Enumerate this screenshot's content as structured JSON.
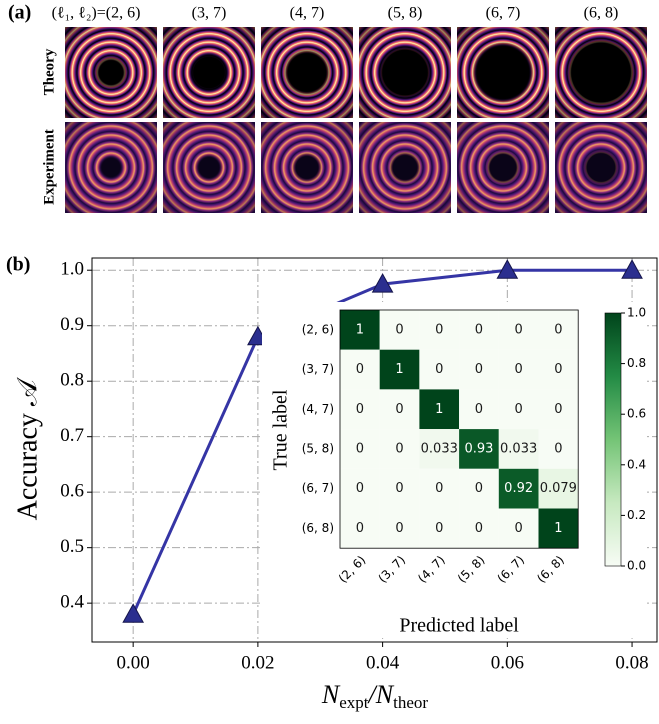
{
  "figure_a": {
    "label": "(a)",
    "columns": [
      "(ℓ₁, ℓ₂)=(2, 6)",
      "(3, 7)",
      "(4, 7)",
      "(5, 8)",
      "(6, 7)",
      "(6, 8)"
    ],
    "rows": [
      "Theory",
      "Experiment"
    ]
  },
  "chart_data": [
    {
      "type": "line",
      "label": "(b)",
      "xlabel": [
        "N",
        "expt",
        "/N",
        "theor"
      ],
      "ylabel": "Accuracy 𝒜",
      "x": [
        0,
        0.02,
        0.04,
        0.06,
        0.08
      ],
      "values": [
        0.38,
        0.88,
        0.975,
        1.0,
        1.0
      ],
      "color": "#3535a5",
      "marker_color": "#2b2f8f",
      "xlim": [
        -0.0066,
        0.084
      ],
      "ylim": [
        0.33,
        1.022
      ],
      "xticks": [
        {
          "value": 0,
          "label": "0.00"
        },
        0.02,
        0.04,
        0.06,
        0.08
      ],
      "yticks": [
        0.4,
        0.5,
        0.6,
        0.7,
        0.8,
        0.9,
        {
          "value": 1,
          "label": "1.0"
        }
      ],
      "grid": true
    },
    {
      "type": "heatmap",
      "xlabel": "Predicted label",
      "ylabel": "True label",
      "categories": [
        "(2, 6)",
        "(3, 7)",
        "(4, 7)",
        "(5, 8)",
        "(6, 7)",
        "(6, 8)"
      ],
      "values": [
        [
          1,
          0,
          0,
          0,
          0,
          0
        ],
        [
          0,
          1,
          0,
          0,
          0,
          0
        ],
        [
          0,
          0,
          1,
          0,
          0,
          0
        ],
        [
          0,
          0,
          0.033,
          0.93,
          0.033,
          0
        ],
        [
          0,
          0,
          0,
          0,
          0.92,
          0.079
        ],
        [
          0,
          0,
          0,
          0,
          0,
          1
        ]
      ],
      "colormap": [
        "#f7fcf5",
        "#c7e9c0",
        "#74c476",
        "#238b45",
        "#00441b"
      ],
      "zlim": [
        0,
        1
      ],
      "zticks": [
        {
          "value": 0,
          "label": "0.0"
        },
        0.2,
        0.4,
        0.6,
        0.8,
        {
          "value": 1,
          "label": "1.0"
        }
      ]
    }
  ]
}
